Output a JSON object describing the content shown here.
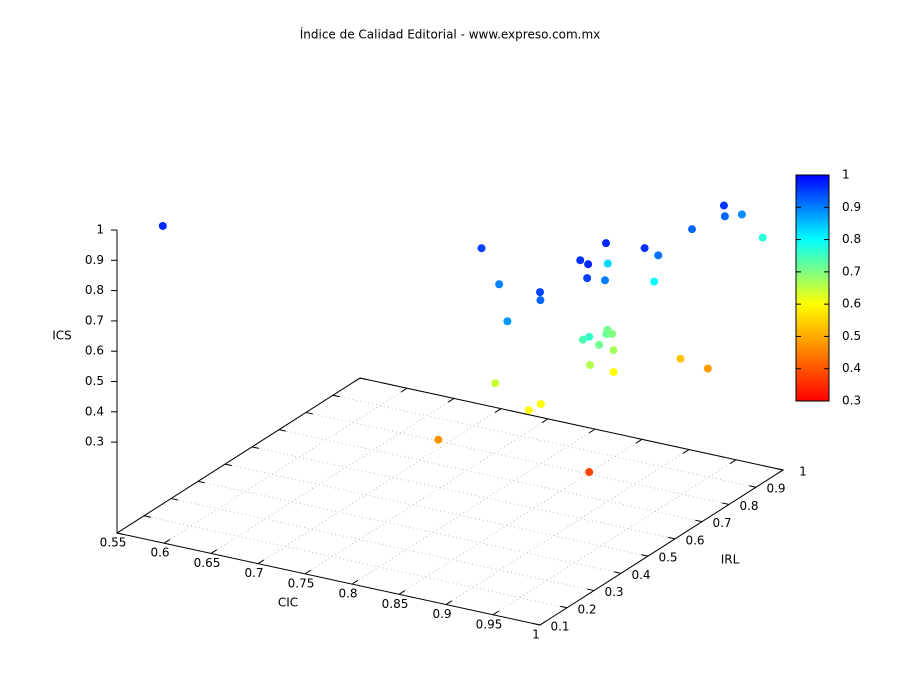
{
  "chart_data": {
    "type": "scatter3d",
    "title": "Índice de Calidad Editorial - www.expreso.com.mx",
    "x_label": "CIC",
    "y_label": "IRL",
    "z_label": "ICS",
    "x": [
      0.57,
      0.843,
      0.883,
      0.928,
      0.944,
      0.943,
      0.94,
      0.955,
      0.964,
      0.943,
      0.962,
      0.917,
      0.976,
      0.977,
      0.965,
      0.975,
      0.986,
      0.985,
      0.985,
      0.985,
      0.958,
      0.967,
      0.966,
      0.962,
      0.954,
      0.959,
      0.969,
      0.965,
      0.97,
      0.905,
      0.95,
      0.952,
      0.98,
      0.995,
      0.866,
      0.992
    ],
    "y": [
      0.2,
      0.43,
      0.356,
      0.23,
      0.295,
      0.3,
      0.458,
      0.435,
      0.4,
      0.543,
      0.473,
      0.64,
      0.571,
      0.618,
      0.645,
      0.75,
      0.83,
      0.837,
      0.9,
      0.977,
      0.405,
      0.397,
      0.437,
      0.478,
      0.51,
      0.51,
      0.48,
      0.407,
      0.477,
      0.265,
      0.233,
      0.27,
      0.69,
      0.739,
      0.19,
      0.31
    ],
    "z": [
      0.97,
      0.95,
      0.9,
      0.88,
      0.95,
      0.92,
      0.96,
      0.97,
      0.95,
      0.97,
      0.9,
      0.83,
      0.96,
      0.91,
      0.8,
      0.92,
      0.96,
      0.92,
      0.89,
      0.77,
      0.74,
      0.76,
      0.71,
      0.72,
      0.71,
      0.7,
      0.67,
      0.66,
      0.6,
      0.64,
      0.6,
      0.6,
      0.53,
      0.48,
      0.47,
      0.38
    ],
    "xlim": [
      0.55,
      1
    ],
    "ylim": [
      0.1,
      1
    ],
    "zlim": [
      0,
      1
    ],
    "xticks": [
      0.55,
      0.6,
      0.65,
      0.7,
      0.75,
      0.8,
      0.85,
      0.9,
      0.95,
      1
    ],
    "yticks": [
      0.1,
      0.2,
      0.3,
      0.4,
      0.5,
      0.6,
      0.7,
      0.8,
      0.9,
      1
    ],
    "zticks": [
      0.3,
      0.4,
      0.5,
      0.6,
      0.7,
      0.8,
      0.9,
      1
    ],
    "cblim": [
      0.3,
      1
    ],
    "cbticks": [
      0.3,
      0.4,
      0.5,
      0.6,
      0.7,
      0.8,
      0.9,
      1
    ],
    "palette": [
      "#ff0000",
      "#ff5500",
      "#ffaa00",
      "#ffff00",
      "#80ff80",
      "#00ffff",
      "#0080ff",
      "#0000ff"
    ],
    "grid": true
  }
}
